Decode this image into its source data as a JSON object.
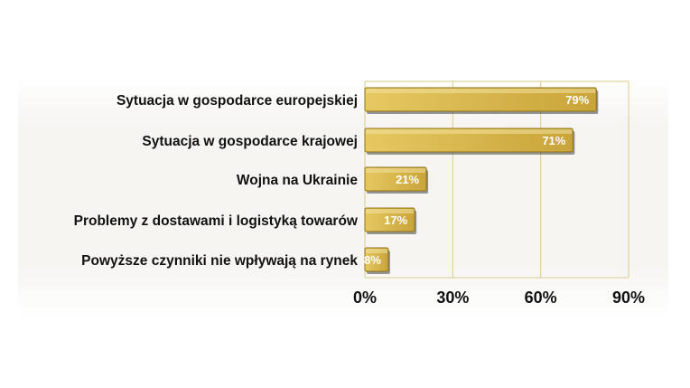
{
  "chart_data": {
    "type": "bar",
    "orientation": "horizontal",
    "categories": [
      "Sytuacja w gospodarce europejskiej",
      "Sytuacja w gospodarce krajowej",
      "Wojna na Ukrainie",
      "Problemy z dostawami i logistyką towarów",
      "Powyższe czynniki nie wpływają na rynek"
    ],
    "values": [
      79,
      71,
      21,
      17,
      8
    ],
    "data_labels": [
      "79%",
      "71%",
      "21%",
      "17%",
      "8%"
    ],
    "xlim": [
      0,
      90
    ],
    "xticks": [
      0,
      30,
      60,
      90
    ],
    "xtick_labels": [
      "0%",
      "30%",
      "60%",
      "90%"
    ],
    "grid": true,
    "legend": "none",
    "colors": {
      "bar": "#c9a43a",
      "bar_light": "#e6c861",
      "bar_dark": "#8f7218",
      "grid": "#d8cc8a",
      "plot_background": "#f7f6f3"
    }
  }
}
